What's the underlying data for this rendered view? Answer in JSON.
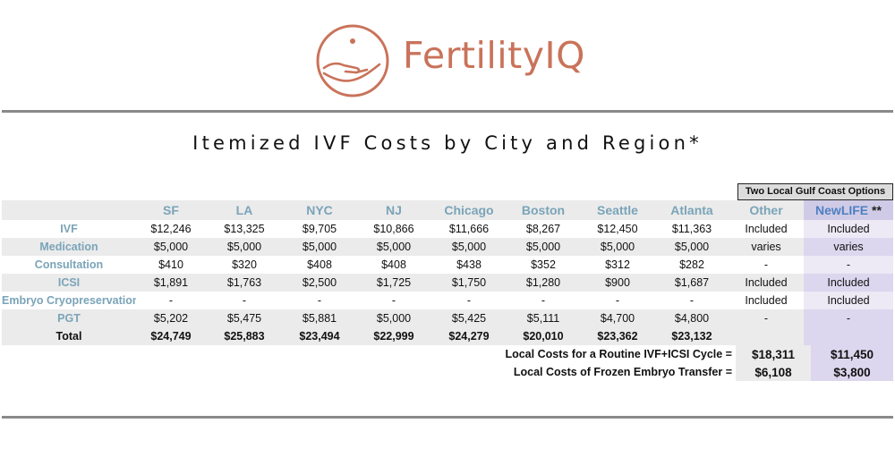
{
  "logo": {
    "text": "FertilityIQ",
    "color": "#c9735a",
    "icon": "hand-with-dot-icon"
  },
  "title": "Itemized IVF Costs by City and Region*",
  "gulf_label": "Two Local Gulf Coast Options",
  "columns": [
    "SF",
    "LA",
    "NYC",
    "NJ",
    "Chicago",
    "Boston",
    "Seattle",
    "Atlanta",
    "Other"
  ],
  "newlife": {
    "label": "NewLIFE",
    "stars": "**"
  },
  "rows": [
    {
      "label": "IVF",
      "cells": [
        "$12,246",
        "$13,325",
        "$9,705",
        "$10,866",
        "$11,666",
        "$8,267",
        "$12,450",
        "$11,363",
        "Included",
        "Included"
      ]
    },
    {
      "label": "Medication",
      "cells": [
        "$5,000",
        "$5,000",
        "$5,000",
        "$5,000",
        "$5,000",
        "$5,000",
        "$5,000",
        "$5,000",
        "varies",
        "varies"
      ]
    },
    {
      "label": "Consultation",
      "cells": [
        "$410",
        "$320",
        "$408",
        "$408",
        "$438",
        "$352",
        "$312",
        "$282",
        "-",
        "-"
      ]
    },
    {
      "label": "ICSI",
      "cells": [
        "$1,891",
        "$1,763",
        "$2,500",
        "$1,725",
        "$1,750",
        "$1,280",
        "$900",
        "$1,687",
        "Included",
        "Included"
      ]
    },
    {
      "label": "Embryo Cryopreservation",
      "cells": [
        "-",
        "-",
        "-",
        "-",
        "-",
        "-",
        "-",
        "-",
        "Included",
        "Included"
      ]
    },
    {
      "label": "PGT",
      "cells": [
        "$5,202",
        "$5,475",
        "$5,881",
        "$5,000",
        "$5,425",
        "$5,111",
        "$4,700",
        "$4,800",
        "-",
        "-"
      ]
    },
    {
      "label": "Total",
      "cells": [
        "$24,749",
        "$25,883",
        "$23,494",
        "$22,999",
        "$24,279",
        "$20,010",
        "$23,362",
        "$23,132",
        "",
        ""
      ]
    }
  ],
  "summary": [
    {
      "label": "Local Costs for a Routine IVF+ICSI Cycle =",
      "other": "$18,311",
      "newlife": "$11,450"
    },
    {
      "label": "Local Costs of Frozen Embryo Transfer =",
      "other": "$6,108",
      "newlife": "$3,800"
    }
  ]
}
